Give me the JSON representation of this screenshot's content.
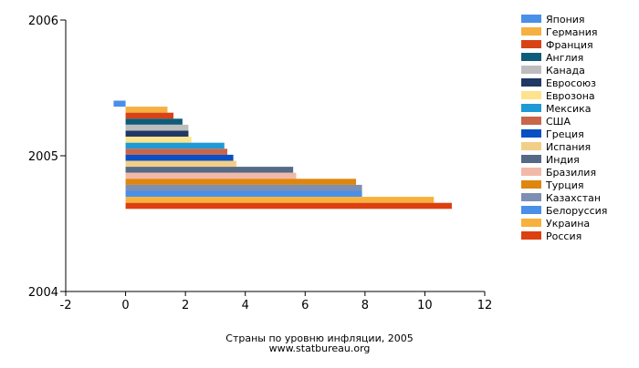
{
  "chart_data": {
    "type": "bar",
    "orientation": "horizontal",
    "title": "Страны по уровню инфляции, 2005",
    "source": "www.statbureau.org",
    "x_ticks": [
      "-2",
      "0",
      "2",
      "4",
      "6",
      "8",
      "10",
      "12"
    ],
    "xlim": [
      -2,
      12
    ],
    "y_ticks": [
      "2006",
      "2005",
      "2004"
    ],
    "ylim": [
      2004,
      2006
    ],
    "grid": false,
    "legend_position": "right",
    "series": [
      {
        "name": "Япония",
        "value": -0.4,
        "color": "#4a8fe8"
      },
      {
        "name": "Германия",
        "value": 1.4,
        "color": "#f5b041"
      },
      {
        "name": "Франция",
        "value": 1.6,
        "color": "#d84315"
      },
      {
        "name": "Англия",
        "value": 1.9,
        "color": "#0f5c7a"
      },
      {
        "name": "Канада",
        "value": 2.1,
        "color": "#bdbdbd"
      },
      {
        "name": "Евросоюз",
        "value": 2.1,
        "color": "#1f3864"
      },
      {
        "name": "Еврозона",
        "value": 2.2,
        "color": "#fde38c"
      },
      {
        "name": "Мексика",
        "value": 3.3,
        "color": "#1e9ad6"
      },
      {
        "name": "США",
        "value": 3.4,
        "color": "#c8654b"
      },
      {
        "name": "Греция",
        "value": 3.6,
        "color": "#0a4fc4"
      },
      {
        "name": "Испания",
        "value": 3.7,
        "color": "#f2cf86"
      },
      {
        "name": "Индия",
        "value": 5.6,
        "color": "#546a86"
      },
      {
        "name": "Бразилия",
        "value": 5.7,
        "color": "#f2b8a8"
      },
      {
        "name": "Турция",
        "value": 7.7,
        "color": "#de860d"
      },
      {
        "name": "Казахстан",
        "value": 7.9,
        "color": "#7d8fb3"
      },
      {
        "name": "Белоруссия",
        "value": 7.9,
        "color": "#4a8fe8"
      },
      {
        "name": "Украина",
        "value": 10.3,
        "color": "#f7b13c"
      },
      {
        "name": "Россия",
        "value": 10.9,
        "color": "#dc3f10"
      }
    ]
  }
}
